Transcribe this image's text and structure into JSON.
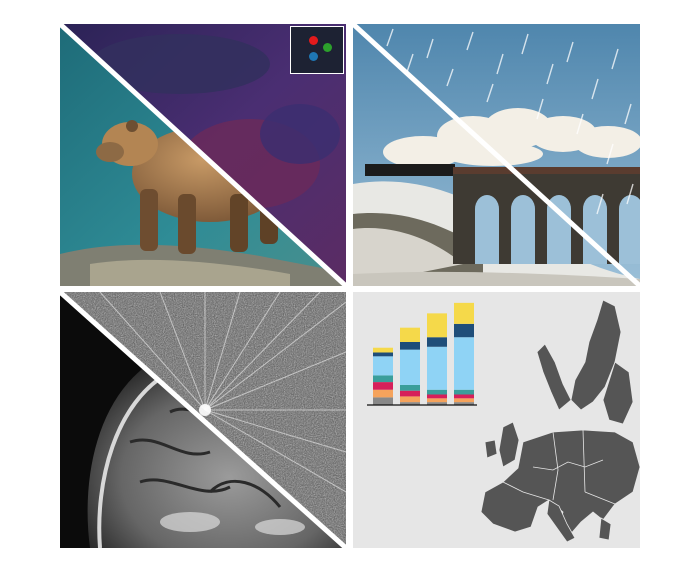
{
  "panels": [
    {
      "name": "bear-photo-panel"
    },
    {
      "name": "train-photo-panel"
    },
    {
      "name": "mri-scan-panel"
    },
    {
      "name": "europe-map-panel"
    }
  ],
  "indicator": {
    "dots": [
      {
        "color": "#e31a1c",
        "label": "red"
      },
      {
        "color": "#2ca02c",
        "label": "green"
      },
      {
        "color": "#1f77b4",
        "label": "blue"
      }
    ]
  },
  "chart_data": {
    "type": "bar",
    "stacked": true,
    "title": "",
    "xlabel": "",
    "ylabel": "",
    "categories": [
      "",
      "",
      "",
      ""
    ],
    "series": [
      {
        "color": "#888888",
        "values": [
          8,
          3,
          3,
          3
        ]
      },
      {
        "color": "#f5a35c",
        "values": [
          8,
          6,
          4,
          4
        ]
      },
      {
        "color": "#d61f5a",
        "values": [
          8,
          6,
          4,
          4
        ]
      },
      {
        "color": "#3a9e9b",
        "values": [
          7,
          6,
          5,
          5
        ]
      },
      {
        "color": "#8fd3f5",
        "values": [
          20,
          37,
          45,
          55
        ]
      },
      {
        "color": "#1f4e79",
        "values": [
          4,
          8,
          10,
          14
        ]
      },
      {
        "color": "#f5d94a",
        "values": [
          5,
          15,
          25,
          22
        ]
      }
    ],
    "ylim": [
      0,
      110
    ],
    "grid": false,
    "legend": "none"
  }
}
